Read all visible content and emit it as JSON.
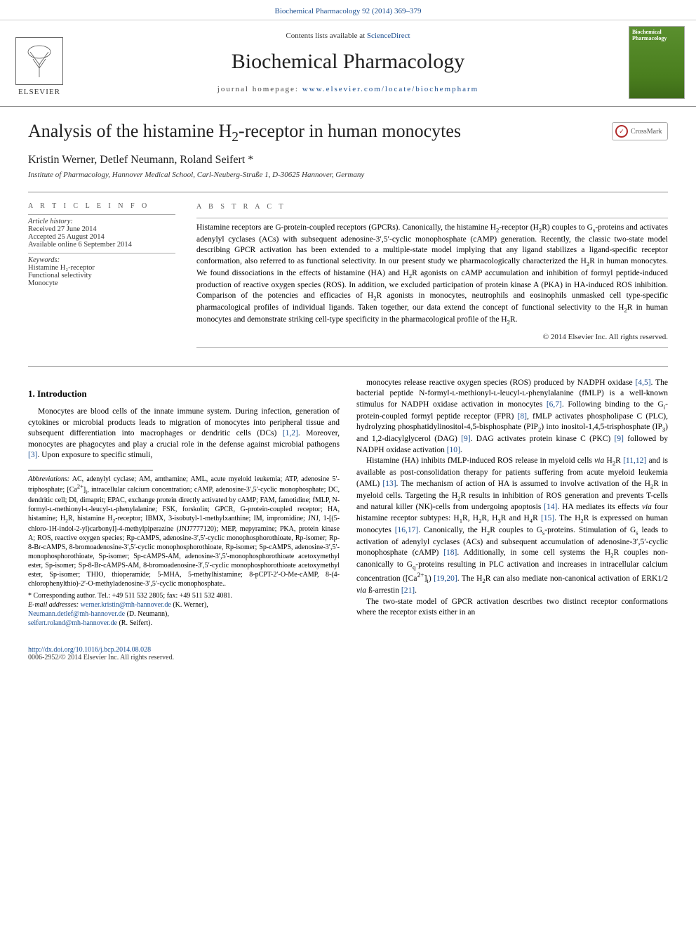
{
  "top_citation": "Biochemical Pharmacology 92 (2014) 369–379",
  "header": {
    "contents_prefix": "Contents lists available at ",
    "contents_link": "ScienceDirect",
    "journal_name": "Biochemical Pharmacology",
    "homepage_prefix": "journal homepage: ",
    "homepage_url": "www.elsevier.com/locate/biochempharm",
    "publisher_name": "ELSEVIER",
    "cover_title": "Biochemical Pharmacology"
  },
  "crossmark_label": "CrossMark",
  "article": {
    "title_html": "Analysis of the histamine H<sub>2</sub>-receptor in human monocytes",
    "authors": "Kristin Werner, Detlef Neumann, Roland Seifert *",
    "affiliation": "Institute of Pharmacology, Hannover Medical School, Carl-Neuberg-Straße 1, D-30625 Hannover, Germany"
  },
  "info": {
    "section_label": "A R T I C L E   I N F O",
    "history_label": "Article history:",
    "received": "Received 27 June 2014",
    "accepted": "Accepted 25 August 2014",
    "online": "Available online 6 September 2014",
    "keywords_label": "Keywords:",
    "keywords": [
      "Histamine H₂-receptor",
      "Functional selectivity",
      "Monocyte"
    ]
  },
  "abstract": {
    "label": "A B S T R A C T",
    "text_html": "Histamine receptors are G-protein-coupled receptors (GPCRs). Canonically, the histamine H<sub>2</sub>-receptor (H<sub>2</sub>R) couples to G<sub>s</sub>-proteins and activates adenylyl cyclases (ACs) with subsequent adenosine-3′,5′-cyclic monophosphate (cAMP) generation. Recently, the classic two-state model describing GPCR activation has been extended to a multiple-state model implying that any ligand stabilizes a ligand-specific receptor conformation, also referred to as functional selectivity. In our present study we pharmacologically characterized the H<sub>2</sub>R in human monocytes. We found dissociations in the effects of histamine (HA) and H<sub>2</sub>R agonists on cAMP accumulation and inhibition of formyl peptide-induced production of reactive oxygen species (ROS). In addition, we excluded participation of protein kinase A (PKA) in HA-induced ROS inhibition. Comparison of the potencies and efficacies of H<sub>2</sub>R agonists in monocytes, neutrophils and eosinophils unmasked cell type-specific pharmacological profiles of individual ligands. Taken together, our data extend the concept of functional selectivity to the H<sub>2</sub>R in human monocytes and demonstrate striking cell-type specificity in the pharmacological profile of the H<sub>2</sub>R.",
    "copyright": "© 2014 Elsevier Inc. All rights reserved."
  },
  "intro": {
    "heading": "1. Introduction",
    "p1_html": "Monocytes are blood cells of the innate immune system. During infection, generation of cytokines or microbial products leads to migration of monocytes into peripheral tissue and subsequent differentiation into macrophages or dendritic cells (DCs) <a class=\"ref-link\" data-name=\"ref-link\" data-interactable=\"true\">[1,2]</a>. Moreover, monocytes are phagocytes and play a crucial role in the defense against microbial pathogens <a class=\"ref-link\" data-name=\"ref-link\" data-interactable=\"true\">[3]</a>. Upon exposure to specific stimuli,",
    "p2_html": "monocytes release reactive oxygen species (ROS) produced by NADPH oxidase <a class=\"ref-link\" data-name=\"ref-link\" data-interactable=\"true\">[4,5]</a>. The bacterial peptide N-formyl-ʟ-methionyl-ʟ-leucyl-ʟ-phenylalanine (fMLP) is a well-known stimulus for NADPH oxidase activation in monocytes <a class=\"ref-link\" data-name=\"ref-link\" data-interactable=\"true\">[6,7]</a>. Following binding to the G<sub>i</sub>-protein-coupled formyl peptide receptor (FPR) <a class=\"ref-link\" data-name=\"ref-link\" data-interactable=\"true\">[8]</a>, fMLP activates phospholipase C (PLC), hydrolyzing phosphatidylinositol-4,5-bisphosphate (PIP<sub>2</sub>) into inositol-1,4,5-trisphosphate (IP<sub>3</sub>) and 1,2-diacylglycerol (DAG) <a class=\"ref-link\" data-name=\"ref-link\" data-interactable=\"true\">[9]</a>. DAG activates protein kinase C (PKC) <a class=\"ref-link\" data-name=\"ref-link\" data-interactable=\"true\">[9]</a> followed by NADPH oxidase activation <a class=\"ref-link\" data-name=\"ref-link\" data-interactable=\"true\">[10]</a>.",
    "p3_html": "Histamine (HA) inhibits fMLP-induced ROS release in myeloid cells <i>via</i> H<sub>2</sub>R <a class=\"ref-link\" data-name=\"ref-link\" data-interactable=\"true\">[11,12]</a> and is available as post-consolidation therapy for patients suffering from acute myeloid leukemia (AML) <a class=\"ref-link\" data-name=\"ref-link\" data-interactable=\"true\">[13]</a>. The mechanism of action of HA is assumed to involve activation of the H<sub>2</sub>R in myeloid cells. Targeting the H<sub>2</sub>R results in inhibition of ROS generation and prevents T-cells and natural killer (NK)-cells from undergoing apoptosis <a class=\"ref-link\" data-name=\"ref-link\" data-interactable=\"true\">[14]</a>. HA mediates its effects <i>via</i> four histamine receptor subtypes: H<sub>1</sub>R, H<sub>2</sub>R, H<sub>3</sub>R and H<sub>4</sub>R <a class=\"ref-link\" data-name=\"ref-link\" data-interactable=\"true\">[15]</a>. The H<sub>2</sub>R is expressed on human monocytes <a class=\"ref-link\" data-name=\"ref-link\" data-interactable=\"true\">[16,17]</a>. Canonically, the H<sub>2</sub>R couples to G<sub>s</sub>-proteins. Stimulation of G<sub>s</sub> leads to activation of adenylyl cyclases (ACs) and subsequent accumulation of adenosine-3′,5′-cyclic monophosphate (cAMP) <a class=\"ref-link\" data-name=\"ref-link\" data-interactable=\"true\">[18]</a>. Additionally, in some cell systems the H<sub>2</sub>R couples non-canonically to G<sub>q</sub>-proteins resulting in PLC activation and increases in intracellular calcium concentration ([Ca<sup>2+</sup>]<sub>i</sub>) <a class=\"ref-link\" data-name=\"ref-link\" data-interactable=\"true\">[19,20]</a>. The H<sub>2</sub>R can also mediate non-canonical activation of ERK1/2 <i>via</i> ß-arrestin <a class=\"ref-link\" data-name=\"ref-link\" data-interactable=\"true\">[21]</a>.",
    "p4_html": "The two-state model of GPCR activation describes two distinct receptor conformations where the receptor exists either in an"
  },
  "abbreviations": {
    "label": "Abbreviations:",
    "text_html": "AC, adenylyl cyclase; AM, amthamine; AML, acute myeloid leukemia; ATP, adenosine 5′-triphosphate; [Ca<sup>2+</sup>]<sub>i</sub>, intracellular calcium concentration; cAMP, adenosine-3′,5′-cyclic monophosphate; DC, dendritic cell; DI, dimaprit; EPAC, exchange protein directly activated by cAMP; FAM, famotidine; fMLP, N-formyl-ʟ-methionyl-ʟ-leucyl-ʟ-phenylalanine; FSK, forskolin; GPCR, G-protein-coupled receptor; HA, histamine; H<sub>2</sub>R, histamine H<sub>2</sub>-receptor; IBMX, 3-isobutyl-1-methylxanthine; IM, impromidine; JNJ, 1-[(5-chloro-1H-indol-2-yl)carbonyl]-4-methylpiperazine (JNJ7777120); MEP, mepyramine; PKA, protein kinase A; ROS, reactive oxygen species; Rp-cAMPS, adenosine-3′,5′-cyclic monophosphorothioate, Rp-isomer; Rp-8-Br-cAMPS, 8-bromoadenosine-3′,5′-cyclic monophosphorothioate, Rp-isomer; Sp-cAMPS, adenosine-3′,5′-monophosphorothioate, Sp-isomer; Sp-cAMPS-AM, adenosine-3′,5′-monophosphorothioate acetoxymethyl ester, Sp-isomer; Sp-8-Br-cAMPS-AM, 8-bromoadenosine-3′,5′-cyclic monophosphorothioate acetoxymethyl ester, Sp-isomer; THIO, thioperamide; 5-MHA, 5-methylhistamine; 8-pCPT-2′-O-Me-cAMP, 8-(4-chlorophenylthio)-2′-O-methyladenosine-3′,5′-cyclic monophosphate.."
  },
  "corresponding": {
    "label": "* Corresponding author. Tel.: +49 511 532 2805; fax: +49 511 532 4081.",
    "email_label": "E-mail addresses:",
    "emails": [
      {
        "addr": "werner.kristin@mh-hannover.de",
        "who": " (K. Werner),"
      },
      {
        "addr": "Neumann.detlef@mh-hannover.de",
        "who": " (D. Neumann),"
      },
      {
        "addr": "seifert.roland@mh-hannover.de",
        "who": " (R. Seifert)."
      }
    ]
  },
  "footer": {
    "doi": "http://dx.doi.org/10.1016/j.bcp.2014.08.028",
    "issn_line": "0006-2952/© 2014 Elsevier Inc. All rights reserved."
  },
  "colors": {
    "link": "#1a4d8f",
    "text": "#000000",
    "rule": "#888888",
    "cover_bg": "#4a7e1e"
  }
}
